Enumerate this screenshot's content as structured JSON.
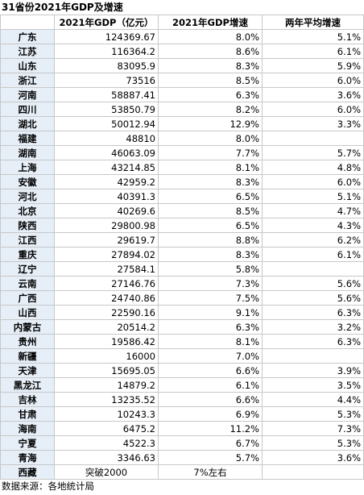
{
  "title": "31省份2021年GDP及增速",
  "headers": [
    "",
    "2021年GDP（亿元）",
    "2021年GDP增速",
    "两年平均增速"
  ],
  "rows": [
    {
      "province": "广东",
      "gdp": "124369.67",
      "growth": "8.0%",
      "avg": "5.1%"
    },
    {
      "province": "江苏",
      "gdp": "116364.2",
      "growth": "8.6%",
      "avg": "6.1%"
    },
    {
      "province": "山东",
      "gdp": "83095.9",
      "growth": "8.3%",
      "avg": "5.9%"
    },
    {
      "province": "浙江",
      "gdp": "73516",
      "growth": "8.5%",
      "avg": "6.0%"
    },
    {
      "province": "河南",
      "gdp": "58887.41",
      "growth": "6.3%",
      "avg": "3.6%"
    },
    {
      "province": "四川",
      "gdp": "53850.79",
      "growth": "8.2%",
      "avg": "6.0%"
    },
    {
      "province": "湖北",
      "gdp": "50012.94",
      "growth": "12.9%",
      "avg": "3.3%"
    },
    {
      "province": "福建",
      "gdp": "48810",
      "growth": "8.0%",
      "avg": ""
    },
    {
      "province": "湖南",
      "gdp": "46063.09",
      "growth": "7.7%",
      "avg": "5.7%"
    },
    {
      "province": "上海",
      "gdp": "43214.85",
      "growth": "8.1%",
      "avg": "4.8%"
    },
    {
      "province": "安徽",
      "gdp": "42959.2",
      "growth": "8.3%",
      "avg": "6.0%"
    },
    {
      "province": "河北",
      "gdp": "40391.3",
      "growth": "6.5%",
      "avg": "5.1%"
    },
    {
      "province": "北京",
      "gdp": "40269.6",
      "growth": "8.5%",
      "avg": "4.7%"
    },
    {
      "province": "陕西",
      "gdp": "29800.98",
      "growth": "6.5%",
      "avg": "4.3%"
    },
    {
      "province": "江西",
      "gdp": "29619.7",
      "growth": "8.8%",
      "avg": "6.2%"
    },
    {
      "province": "重庆",
      "gdp": "27894.02",
      "growth": "8.3%",
      "avg": "6.1%"
    },
    {
      "province": "辽宁",
      "gdp": "27584.1",
      "growth": "5.8%",
      "avg": ""
    },
    {
      "province": "云南",
      "gdp": "27146.76",
      "growth": "7.3%",
      "avg": "5.6%"
    },
    {
      "province": "广西",
      "gdp": "24740.86",
      "growth": "7.5%",
      "avg": "5.6%"
    },
    {
      "province": "山西",
      "gdp": "22590.16",
      "growth": "9.1%",
      "avg": "6.3%"
    },
    {
      "province": "内蒙古",
      "gdp": "20514.2",
      "growth": "6.3%",
      "avg": "3.2%"
    },
    {
      "province": "贵州",
      "gdp": "19586.42",
      "growth": "8.1%",
      "avg": "6.3%"
    },
    {
      "province": "新疆",
      "gdp": "16000",
      "growth": "7.0%",
      "avg": ""
    },
    {
      "province": "天津",
      "gdp": "15695.05",
      "growth": "6.6%",
      "avg": "3.9%"
    },
    {
      "province": "黑龙江",
      "gdp": "14879.2",
      "growth": "6.1%",
      "avg": "3.5%"
    },
    {
      "province": "吉林",
      "gdp": "13235.52",
      "growth": "6.6%",
      "avg": "4.4%"
    },
    {
      "province": "甘肃",
      "gdp": "10243.3",
      "growth": "6.9%",
      "avg": "5.3%"
    },
    {
      "province": "海南",
      "gdp": "6475.2",
      "growth": "11.2%",
      "avg": "7.3%"
    },
    {
      "province": "宁夏",
      "gdp": "4522.3",
      "growth": "6.7%",
      "avg": "5.3%"
    },
    {
      "province": "青海",
      "gdp": "3346.63",
      "growth": "5.7%",
      "avg": "3.6%"
    },
    {
      "province": "西藏",
      "gdp": "突破2000",
      "growth": "7%左右",
      "avg": ""
    }
  ],
  "footer": "数据来源：各地统计局",
  "colors": {
    "province_bg": "#e6eef7",
    "border": "#c8c8c8"
  }
}
